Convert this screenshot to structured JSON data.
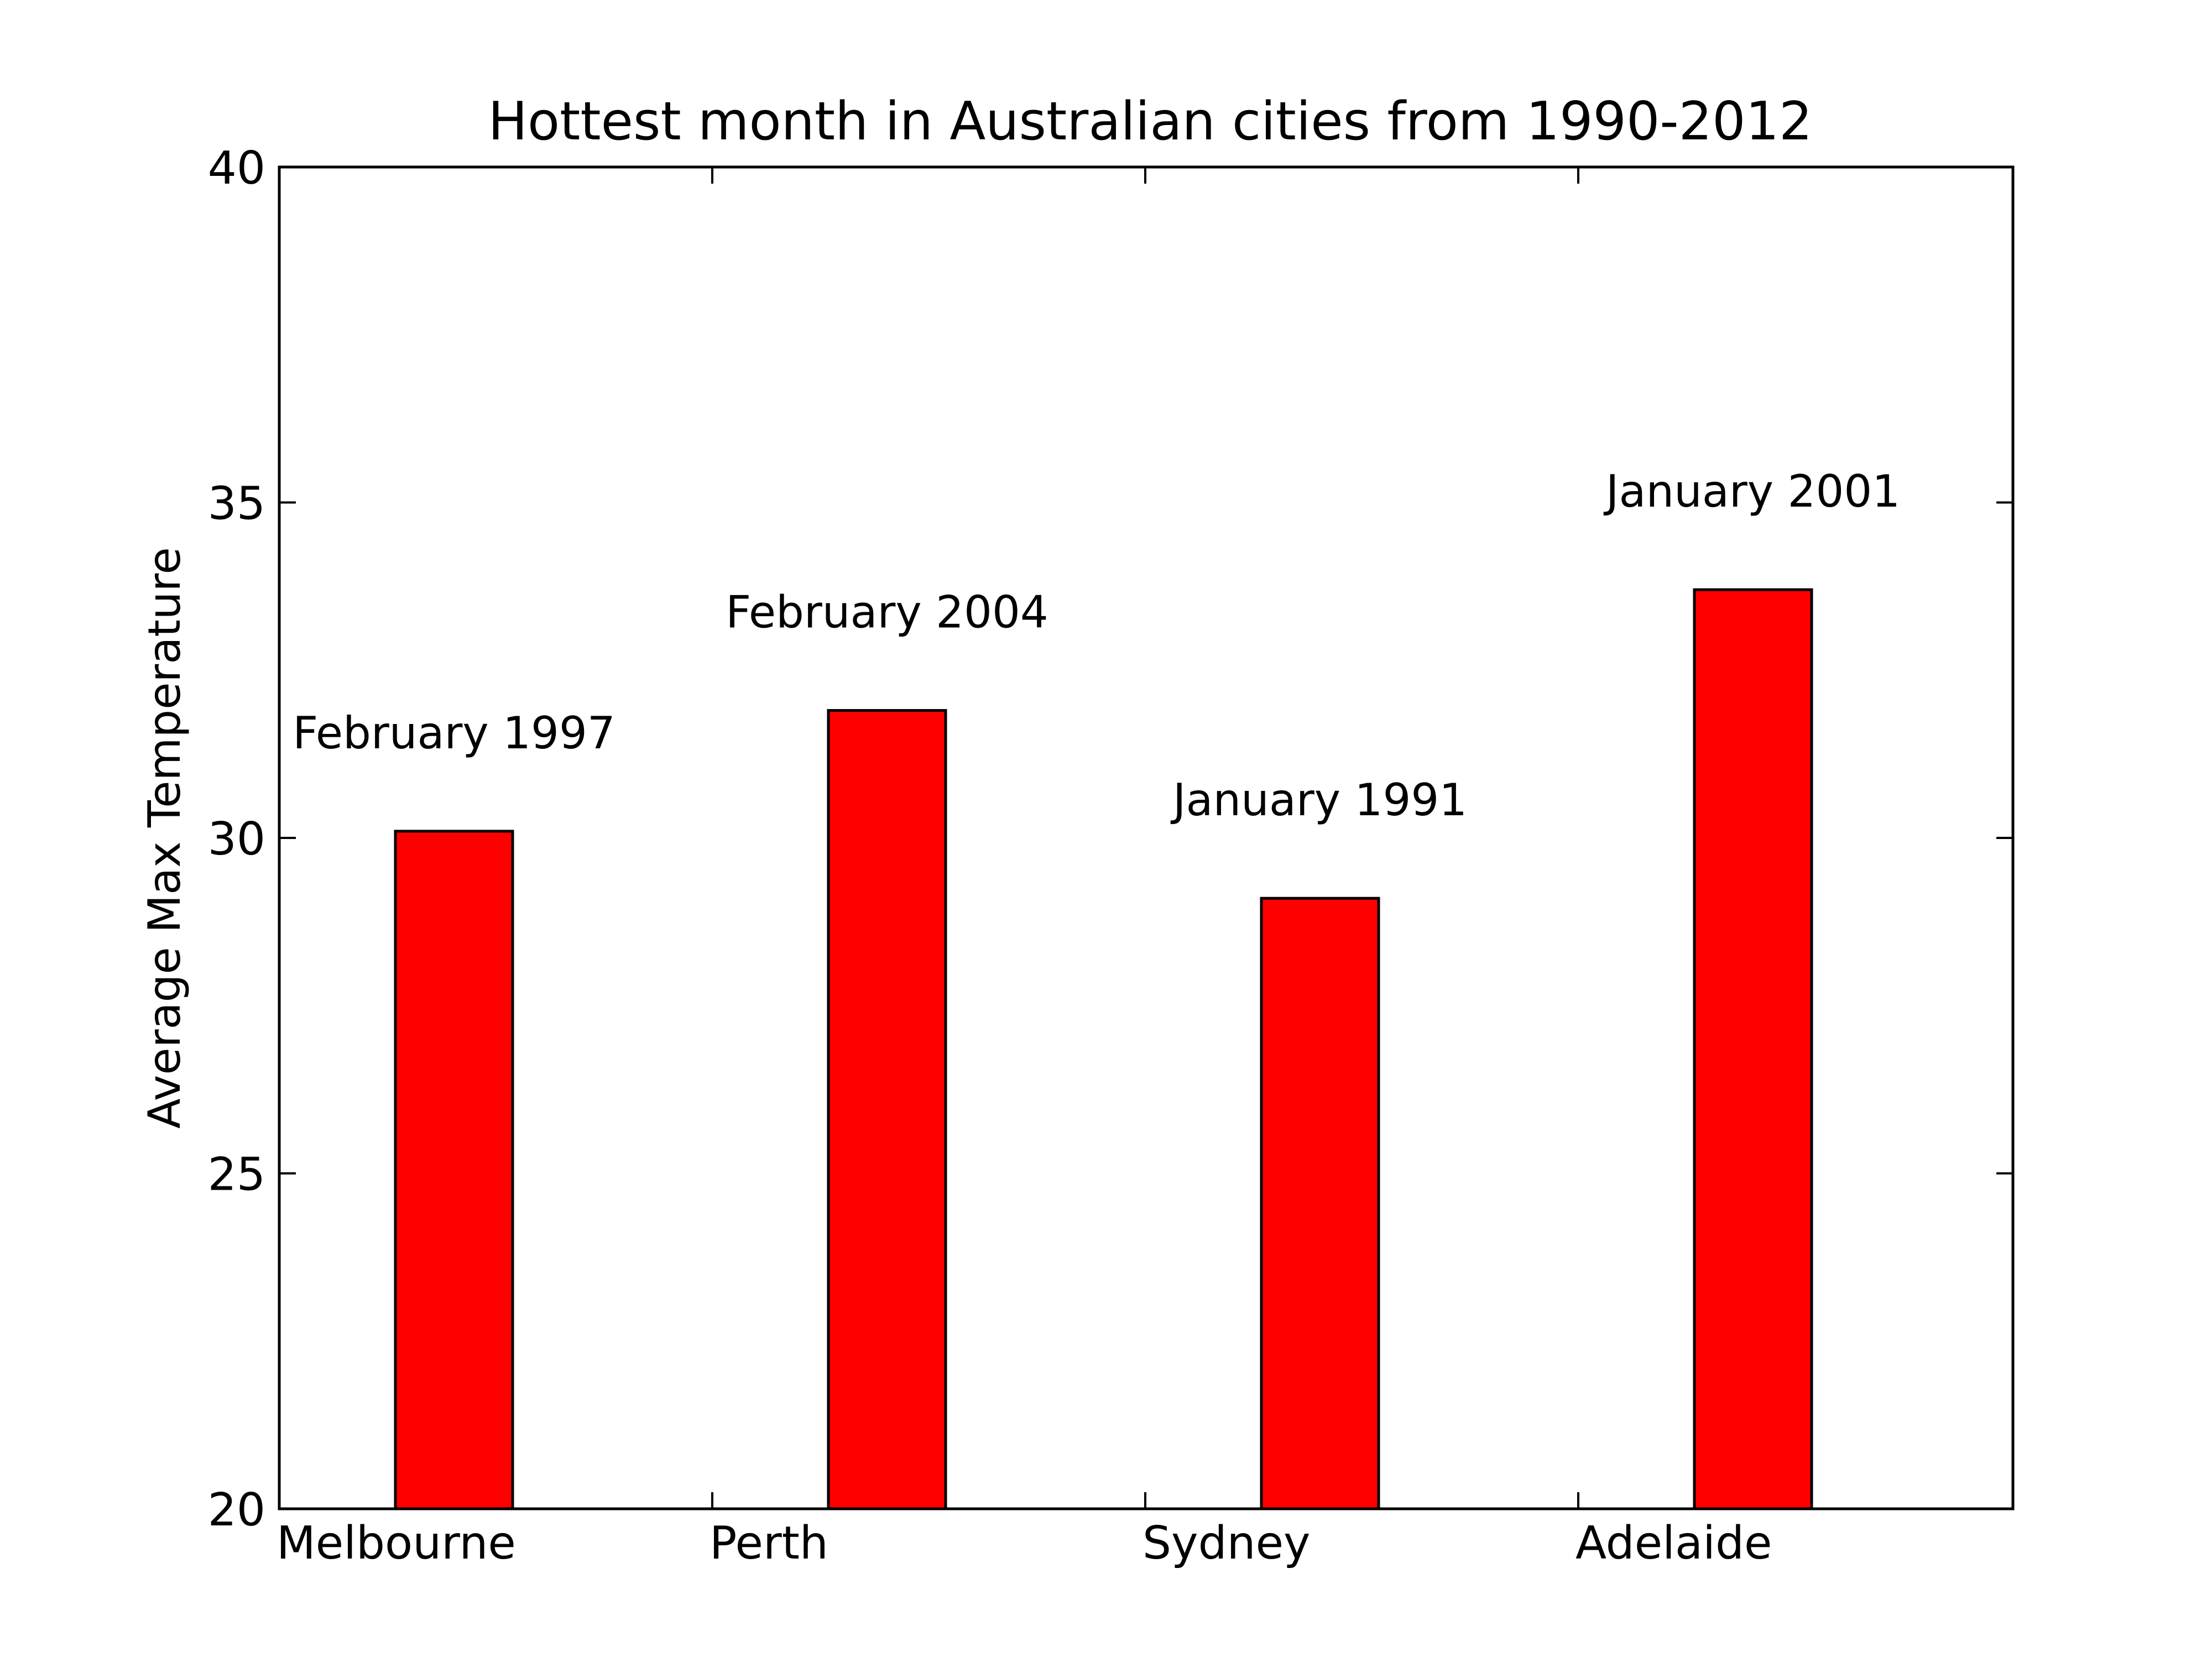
{
  "chart_data": {
    "type": "bar",
    "title": "Hottest month in Australian cities from 1990-2012",
    "xlabel": "",
    "ylabel": "Average Max Temperature",
    "categories": [
      "Melbourne",
      "Perth",
      "Sydney",
      "Adelaide"
    ],
    "values": [
      30.1,
      31.9,
      29.1,
      33.7
    ],
    "bar_labels": [
      "February 1997",
      "February 2004",
      "January 1991",
      "January 2001"
    ],
    "ylim": [
      20,
      40
    ],
    "yticks": [
      20,
      25,
      30,
      35,
      40
    ],
    "grid": false,
    "legend": "none",
    "bar_color": "#ff0000",
    "edge_color": "#000000"
  }
}
